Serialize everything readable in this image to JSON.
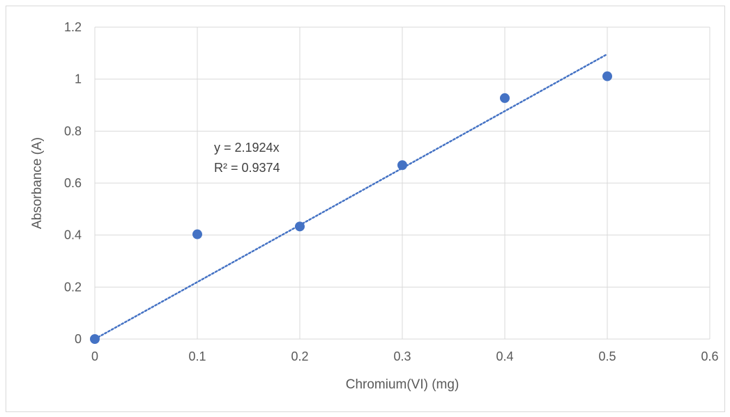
{
  "chart_data": {
    "type": "scatter",
    "title": "",
    "xlabel": "Chromium(VI) (mg)",
    "ylabel": "Absorbance (A)",
    "xlim": [
      0,
      0.6
    ],
    "ylim": [
      0,
      1.2
    ],
    "x_ticks": [
      0,
      0.1,
      0.2,
      0.3,
      0.4,
      0.5,
      0.6
    ],
    "y_ticks": [
      0,
      0.2,
      0.4,
      0.6,
      0.8,
      1,
      1.2
    ],
    "x_tick_labels": [
      "0",
      "0.1",
      "0.2",
      "0.3",
      "0.4",
      "0.5",
      "0.6"
    ],
    "y_tick_labels": [
      "0",
      "0.2",
      "0.4",
      "0.6",
      "0.8",
      "1",
      "1.2"
    ],
    "grid": true,
    "legend": "none",
    "series": [
      {
        "x": [
          0,
          0.1,
          0.2,
          0.3,
          0.4,
          0.5
        ],
        "y": [
          0,
          0.403,
          0.433,
          0.669,
          0.927,
          1.011
        ],
        "color": "#4472C4",
        "marker": "circle"
      }
    ],
    "trendline": {
      "type": "linear",
      "slope": 2.1924,
      "intercept": 0,
      "x_range": [
        0,
        0.5
      ],
      "style": "dotted",
      "color": "#4472C4",
      "equation_label": "y = 2.1924x",
      "r_squared_label": "R² = 0.9374"
    }
  }
}
